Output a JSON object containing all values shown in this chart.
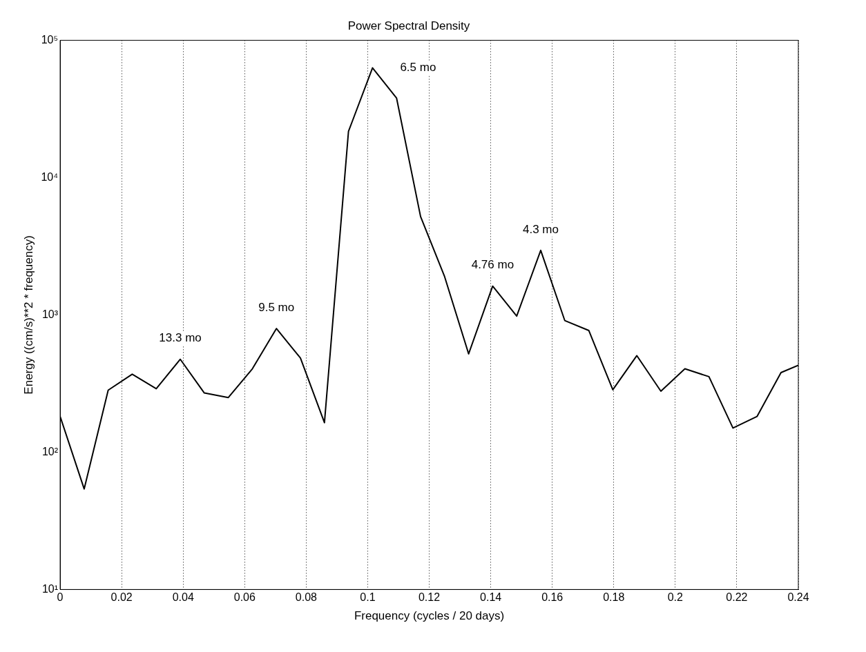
{
  "chart_data": {
    "type": "line",
    "title": "Power Spectral Density",
    "xlabel": "Frequency (cycles / 20 days)",
    "ylabel": "Energy ((cm/s)**2 * frequency)",
    "x": [
      0,
      0.0078125,
      0.015625,
      0.0234375,
      0.03125,
      0.0390625,
      0.046875,
      0.0546875,
      0.0625,
      0.0703125,
      0.078125,
      0.0859375,
      0.09375,
      0.1015625,
      0.109375,
      0.1171875,
      0.125,
      0.1328125,
      0.140625,
      0.1484375,
      0.15625,
      0.1640625,
      0.171875,
      0.1796875,
      0.1875,
      0.1953125,
      0.203125,
      0.2109375,
      0.21875,
      0.2265625,
      0.234375,
      0.24
    ],
    "series": [
      {
        "color": "#000000",
        "values": [
          182,
          54,
          283,
          370,
          290,
          475,
          270,
          250,
          405,
          795,
          485,
          164,
          21700,
          63000,
          38000,
          5200,
          1900,
          520,
          1620,
          980,
          2950,
          910,
          770,
          285,
          505,
          278,
          405,
          355,
          150,
          182,
          380,
          430
        ]
      }
    ],
    "xlim": [
      0,
      0.24
    ],
    "xticks": [
      0,
      0.02,
      0.04,
      0.06,
      0.08,
      0.1,
      0.12,
      0.14,
      0.16,
      0.18,
      0.2,
      0.22,
      0.24
    ],
    "ylim": [
      10,
      100000
    ],
    "yticks": [
      {
        "value": 10,
        "label": "10¹"
      },
      {
        "value": 100,
        "label": "10²"
      },
      {
        "value": 1000,
        "label": "10³"
      },
      {
        "value": 10000,
        "label": "10⁴"
      },
      {
        "value": 100000,
        "label": "10⁵"
      }
    ],
    "log": "y",
    "grid": "x",
    "legend": false,
    "annotations": [
      {
        "text": "13.3 mo",
        "x": 0.0390625,
        "y": 475
      },
      {
        "text": "9.5 mo",
        "x": 0.0703125,
        "y": 795
      },
      {
        "text": "6.5 mo",
        "x": 0.1015625,
        "y": 63000
      },
      {
        "text": "4.3 mo",
        "x": 0.15625,
        "y": 2950
      },
      {
        "text": "4.76 mo",
        "x": 0.140625,
        "y": 1620
      }
    ]
  }
}
